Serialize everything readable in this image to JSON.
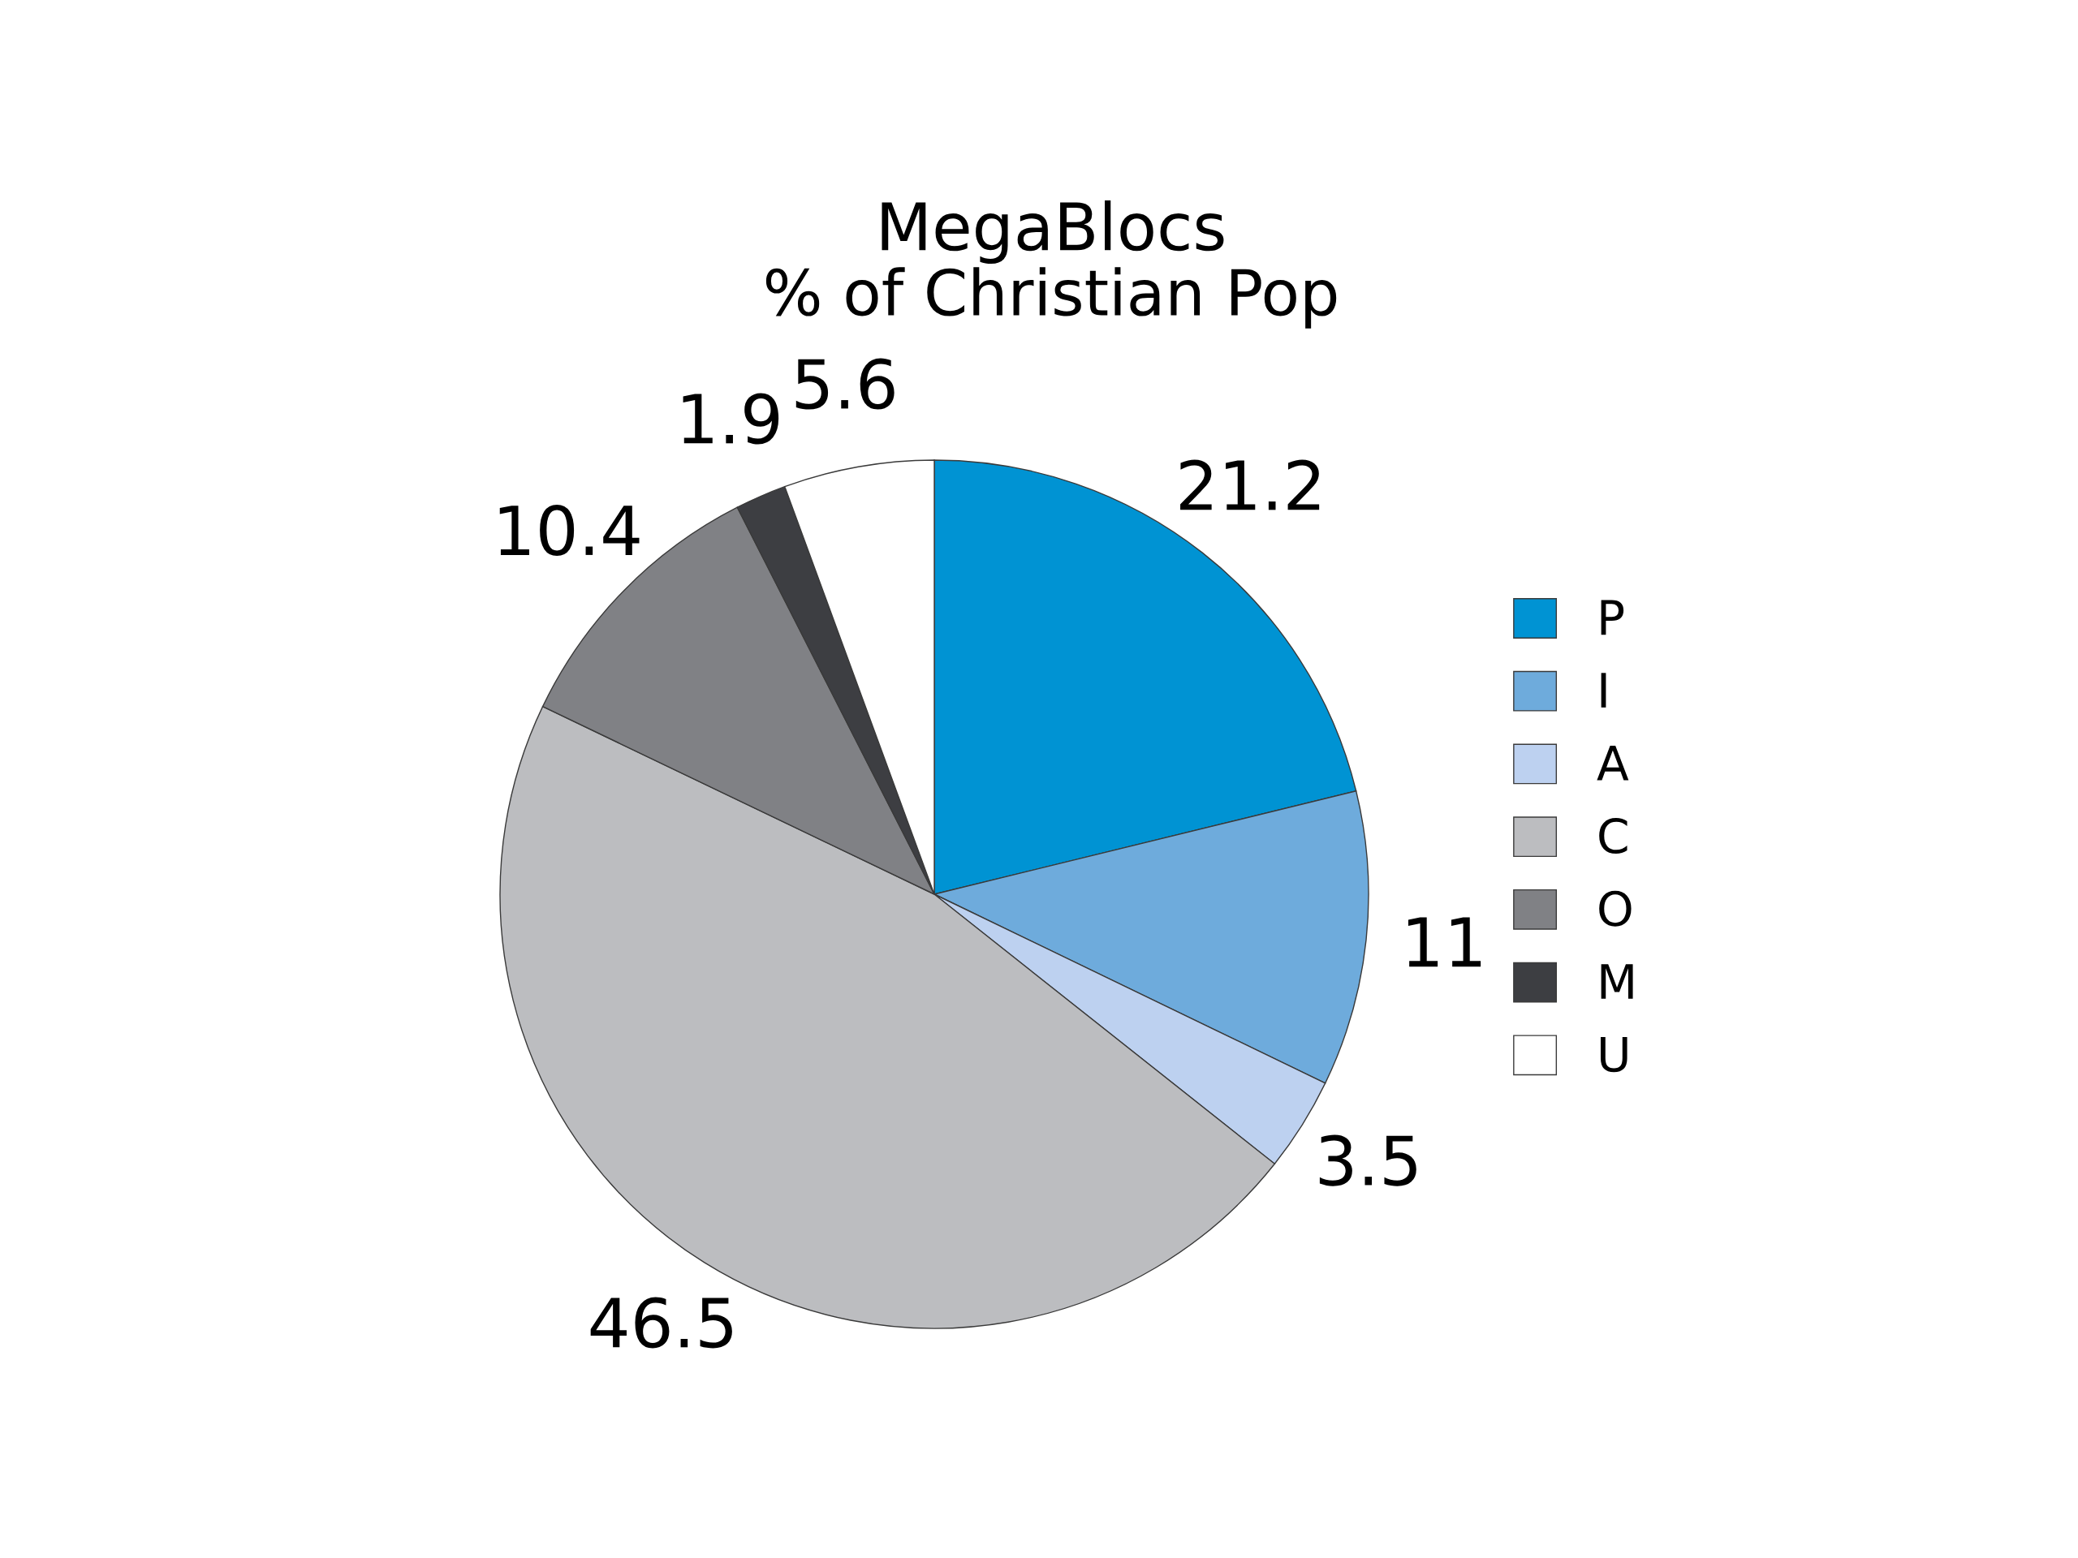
{
  "chart_data": {
    "type": "pie",
    "title": "MegaBlocs",
    "subtitle": "% of Christian Pop",
    "categories": [
      "P",
      "I",
      "A",
      "C",
      "O",
      "M",
      "U"
    ],
    "values": [
      21.2,
      11,
      3.5,
      46.5,
      10.4,
      1.9,
      5.6
    ],
    "colors": [
      "#0093d3",
      "#6eabdc",
      "#bdd1f0",
      "#bcbdc0",
      "#808185",
      "#3d3e42",
      "#ffffff"
    ],
    "data_labels": true,
    "legend": "right"
  }
}
